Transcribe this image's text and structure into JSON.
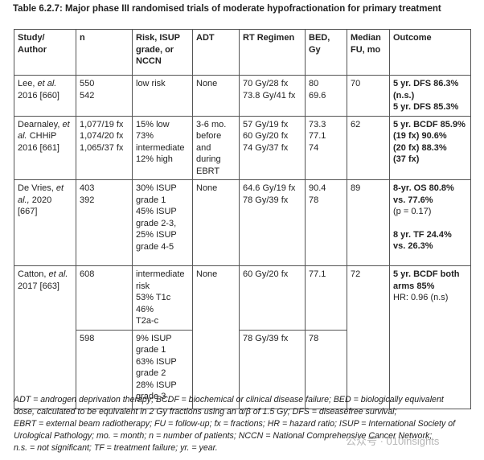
{
  "title": "Table 6.2.7: Major phase III randomised trials of moderate hypofractionation for primary treatment",
  "table": {
    "header": [
      "Study/ Author",
      "n",
      "Risk, ISUP grade, or NCCN",
      "ADT",
      "RT Regimen",
      "BED, Gy",
      "Median FU, mo",
      "Outcome"
    ],
    "rows": [
      {
        "study": {
          "author": "Lee,",
          "etal": "et al.",
          "ref": "2016 [660]"
        },
        "n": [
          "550",
          "542"
        ],
        "risk": [
          "low risk"
        ],
        "adt": [
          "None"
        ],
        "regimen": [
          "70 Gy/28 fx",
          "73.8 Gy/41 fx"
        ],
        "bed": [
          "80",
          "69.6"
        ],
        "fu": [
          "70"
        ],
        "outcome": [
          "5 yr. DFS 86.3%",
          "(n.s.)",
          "5 yr. DFS 85.3%"
        ]
      },
      {
        "study": {
          "author": "Dearnaley,",
          "etal": "et al.",
          "ref": "CHHiP 2016 [661]"
        },
        "n": [
          "1,077/19 fx",
          "1,074/20 fx",
          "1,065/37 fx"
        ],
        "risk": [
          "15% low 73%",
          "intermediate",
          "12% high"
        ],
        "adt": [
          "3-6 mo.",
          "before",
          "and",
          "during",
          "EBRT"
        ],
        "regimen": [
          "57 Gy/19 fx",
          "60 Gy/20 fx",
          "74 Gy/37 fx"
        ],
        "bed": [
          "73.3",
          "77.1",
          "74"
        ],
        "fu": [
          "62"
        ],
        "outcome": [
          "5 yr. BCDF 85.9%",
          "(19 fx) 90.6%",
          "(20 fx) 88.3%",
          "(37 fx)"
        ]
      },
      {
        "study": {
          "author": "De Vries,",
          "etal": "et al.,",
          "ref": "2020 [667]"
        },
        "n": [
          "403",
          "392"
        ],
        "risk": [
          "30% ISUP",
          "grade 1",
          "45% ISUP",
          "grade 2-3,",
          "25% ISUP",
          "grade 4-5"
        ],
        "adt": [
          "None"
        ],
        "regimen": [
          "64.6 Gy/19 fx",
          "78 Gy/39 fx"
        ],
        "bed": [
          "90.4",
          "78"
        ],
        "fu": [
          "89"
        ],
        "outcome": [
          "8-yr. OS 80.8%",
          "vs. 77.6%",
          "(p = 0.17)",
          "8 yr. TF 24.4%",
          "vs. 26.3%"
        ]
      },
      {
        "study": {
          "author": "Catton,",
          "etal": "et al.",
          "ref": "2017 [663]"
        },
        "n": [
          "608"
        ],
        "risk": [
          "intermediate",
          "risk",
          "53% T1c 46%",
          "T2a-c"
        ],
        "adt": [
          "None"
        ],
        "regimen": [
          "60 Gy/20 fx"
        ],
        "bed": [
          "77.1"
        ],
        "fu": [
          "72"
        ],
        "outcome": [
          "5 yr. BCDF both",
          "arms 85%",
          "HR: 0.96 (n.s)"
        ]
      },
      {
        "n": [
          "598"
        ],
        "risk": [
          "9% ISUP",
          "grade 1",
          "63% ISUP",
          "grade 2",
          "28% ISUP",
          "grade 3"
        ],
        "regimen": [
          "78 Gy/39 fx"
        ],
        "bed": [
          "78"
        ]
      }
    ]
  },
  "footnote": [
    "ADT = androgen deprivation therapy; BCDF = biochemical or clinical disease failure; BED = biologically equivalent",
    "dose, calculated to be equivalent in 2 Gy fractions using an α/β of 1.5 Gy; DFS = diseasefree survival;",
    "EBRT = external beam radiotherapy; FU = follow-up; fx = fractions; HR = hazard ratio; ISUP = International Society of",
    "Urological Pathology; mo. = month; n = number of patients; NCCN = National Comprehensive Cancer Network;",
    "n.s. = not significant; TF = treatment failure; yr. = year."
  ],
  "watermark": "公众号 · 010insights"
}
